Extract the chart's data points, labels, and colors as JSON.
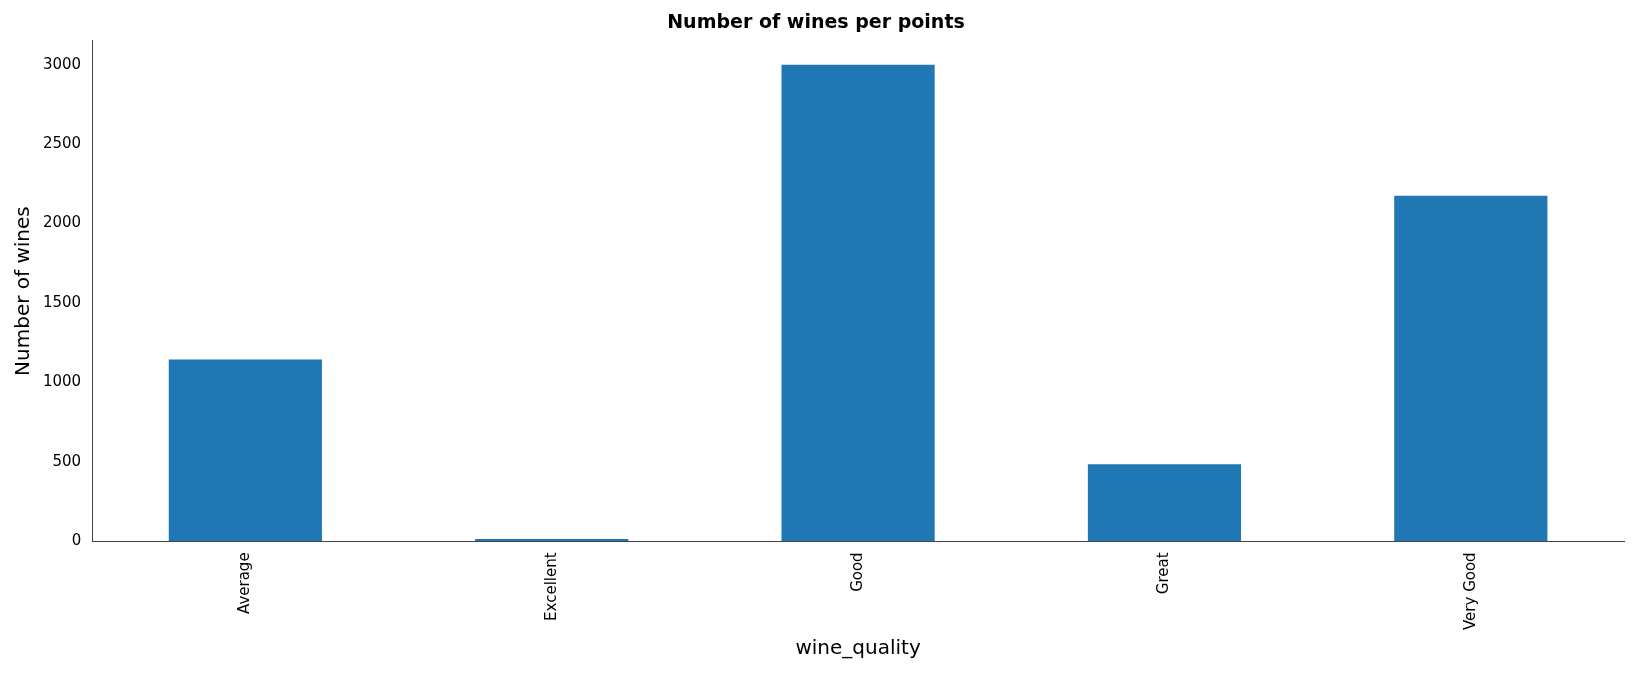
{
  "chart_data": {
    "type": "bar",
    "title": "Number of wines per points",
    "xlabel": "wine_quality",
    "ylabel": "Number of wines",
    "categories": [
      "Average",
      "Excellent",
      "Good",
      "Great",
      "Very Good"
    ],
    "values": [
      1145,
      15,
      3000,
      485,
      2175
    ],
    "color": "#1f77b4",
    "ylim": [
      0,
      3150
    ],
    "yticks": [
      0,
      500,
      1000,
      1500,
      2000,
      2500,
      3000
    ],
    "grid": false,
    "legend": false
  }
}
